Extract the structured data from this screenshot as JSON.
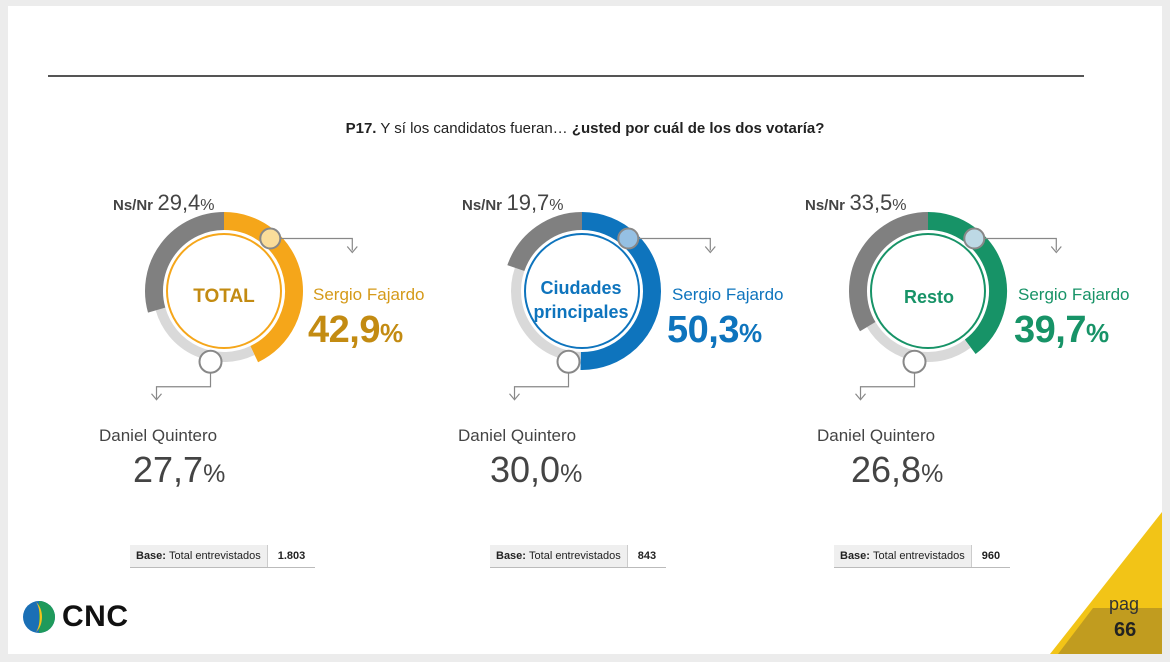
{
  "question": {
    "code": "P17.",
    "text": " Y sí los candidatos fueran…  ",
    "emphasis": "¿usted por cuál de los dos votaría?"
  },
  "legend": {
    "nsnr_label": "Ns/Nr",
    "fajardo_label": "Sergio Fajardo",
    "quintero_label": "Daniel Quintero",
    "pct_sign": "%"
  },
  "colors": {
    "gray": "#808080",
    "light_gray": "#d9d9d9",
    "total": "#f5a61a",
    "total_text": "#c38b12",
    "ciudades": "#0e74bd",
    "resto": "#179367"
  },
  "chart_data": [
    {
      "type": "pie",
      "title": "TOTAL",
      "series": [
        {
          "name": "Sergio Fajardo",
          "value": 42.9,
          "label": "42,9"
        },
        {
          "name": "Daniel Quintero",
          "value": 27.7,
          "label": "27,7"
        },
        {
          "name": "Ns/Nr",
          "value": 29.4,
          "label": "29,4"
        }
      ],
      "base": {
        "label": "Base:",
        "text": "Total entrevistados",
        "n": "1.803"
      }
    },
    {
      "type": "pie",
      "title": "Ciudades principales",
      "title_lines": [
        "Ciudades",
        "principales"
      ],
      "series": [
        {
          "name": "Sergio Fajardo",
          "value": 50.3,
          "label": "50,3"
        },
        {
          "name": "Daniel Quintero",
          "value": 30.0,
          "label": "30,0"
        },
        {
          "name": "Ns/Nr",
          "value": 19.7,
          "label": "19,7"
        }
      ],
      "base": {
        "label": "Base:",
        "text": "Total entrevistados",
        "n": "843"
      }
    },
    {
      "type": "pie",
      "title": "Resto",
      "series": [
        {
          "name": "Sergio Fajardo",
          "value": 39.7,
          "label": "39,7"
        },
        {
          "name": "Daniel Quintero",
          "value": 26.8,
          "label": "26,8"
        },
        {
          "name": "Ns/Nr",
          "value": 33.5,
          "label": "33,5"
        }
      ],
      "base": {
        "label": "Base:",
        "text": "Total entrevistados",
        "n": "960"
      }
    }
  ],
  "footer": {
    "logo_text": "CNC",
    "page_label": "pag",
    "page_number": "66"
  }
}
